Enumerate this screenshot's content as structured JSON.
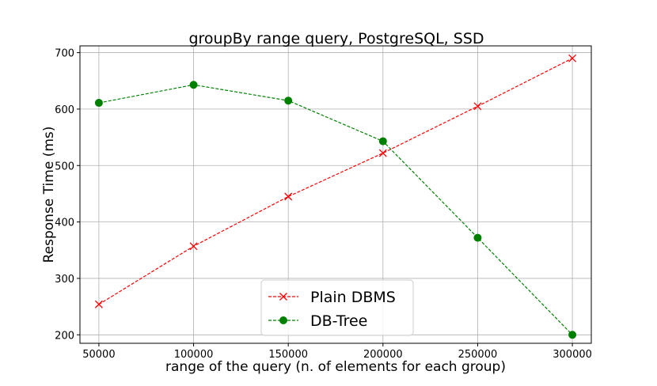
{
  "chart_data": {
    "type": "line",
    "title": "groupBy range query, PostgreSQL, SSD",
    "xlabel": "range of the query  (n. of elements for each group)",
    "ylabel": "Response Time (ms)",
    "x": [
      50000,
      100000,
      150000,
      200000,
      250000,
      300000
    ],
    "x_tick_labels": [
      "50000",
      "100000",
      "150000",
      "200000",
      "250000",
      "300000"
    ],
    "y_ticks": [
      200,
      300,
      400,
      500,
      600,
      700
    ],
    "y_tick_labels": [
      "200",
      "300",
      "400",
      "500",
      "600",
      "700"
    ],
    "xlim": [
      40000,
      310000
    ],
    "ylim": [
      185,
      712
    ],
    "grid": true,
    "legend_position": "bottom-center",
    "series": [
      {
        "name": "Plain DBMS",
        "color": "#ff0000",
        "marker": "x",
        "linestyle": "dashed",
        "values": [
          254,
          357,
          445,
          522,
          605,
          690
        ]
      },
      {
        "name": "DB-Tree",
        "color": "#008000",
        "marker": "circle",
        "linestyle": "dashed",
        "values": [
          611,
          643,
          615,
          543,
          372,
          200
        ]
      }
    ]
  }
}
